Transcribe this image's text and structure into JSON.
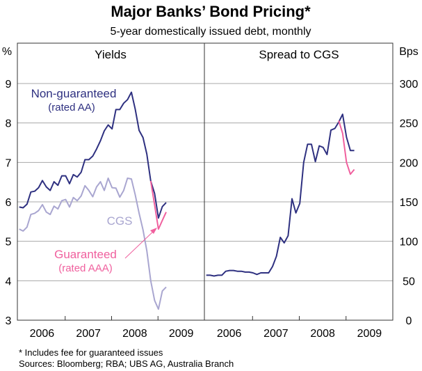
{
  "chart_data": [
    {
      "type": "line",
      "title": "Major Banks’ Bond Pricing*",
      "subtitle": "5-year domestically issued debt, monthly",
      "panel_title": "Yields",
      "ylabel": "%",
      "ylim": [
        3,
        9
      ],
      "yticks": [
        "3",
        "4",
        "5",
        "6",
        "7",
        "8",
        "9"
      ],
      "xlim": [
        2005.97,
        2010
      ],
      "xticks": [
        "2006",
        "2007",
        "2008",
        "2009"
      ],
      "x_start": 2006.0,
      "x_step_months": 1,
      "grid": true,
      "series": [
        {
          "name": "Non-guaranteed",
          "sublabel": "(rated AA)",
          "color": "#2e3080",
          "start_index": 0,
          "values": [
            5.87,
            5.85,
            5.94,
            6.25,
            6.27,
            6.36,
            6.54,
            6.38,
            6.29,
            6.51,
            6.42,
            6.66,
            6.66,
            6.46,
            6.69,
            6.63,
            6.75,
            7.07,
            7.07,
            7.16,
            7.34,
            7.55,
            7.8,
            7.95,
            7.85,
            8.34,
            8.34,
            8.5,
            8.59,
            8.78,
            8.35,
            7.81,
            7.63,
            7.21,
            6.53,
            6.21,
            5.59,
            5.88,
            5.98
          ]
        },
        {
          "name": "CGS",
          "sublabel": "",
          "color": "#a9a6d0",
          "start_index": 0,
          "values": [
            5.31,
            5.26,
            5.36,
            5.68,
            5.71,
            5.78,
            5.93,
            5.74,
            5.68,
            5.89,
            5.82,
            6.03,
            6.06,
            5.87,
            6.11,
            6.03,
            6.15,
            6.41,
            6.29,
            6.13,
            6.38,
            6.51,
            6.29,
            6.6,
            6.36,
            6.35,
            6.12,
            6.29,
            6.6,
            6.58,
            6.18,
            5.71,
            5.29,
            4.76,
            4.0,
            3.5,
            3.28,
            3.74,
            3.84
          ]
        },
        {
          "name": "Guaranteed",
          "sublabel": "(rated AAA)",
          "color": "#f0609e",
          "start_index": 34,
          "values": [
            6.53,
            5.92,
            5.31,
            5.53,
            5.74
          ]
        }
      ]
    },
    {
      "type": "line",
      "panel_title": "Spread to CGS",
      "ylabel": "Bps",
      "ylim": [
        0,
        300
      ],
      "yticks": [
        "0",
        "50",
        "100",
        "150",
        "200",
        "250",
        "300"
      ],
      "xlim": [
        2005.97,
        2010
      ],
      "xticks": [
        "2006",
        "2007",
        "2008",
        "2009"
      ],
      "grid": true,
      "series": [
        {
          "name": "Non-guaranteed",
          "color": "#2e3080",
          "start_index": 0,
          "values": [
            57,
            57,
            56,
            57,
            57,
            62,
            63,
            63,
            62,
            62,
            61,
            61,
            60,
            58,
            60,
            60,
            60,
            68,
            81,
            105,
            98,
            107,
            154,
            136,
            148,
            200,
            223,
            223,
            201,
            221,
            219,
            210,
            241,
            243,
            251,
            261,
            232,
            215,
            215
          ]
        },
        {
          "name": "Guaranteed",
          "color": "#f0609e",
          "start_index": 34,
          "values": [
            253,
            237,
            200,
            185,
            191
          ]
        }
      ]
    }
  ],
  "footnotes": [
    "*   Includes fee for guaranteed issues",
    "Sources: Bloomberg; RBA; UBS AG, Australia Branch"
  ]
}
